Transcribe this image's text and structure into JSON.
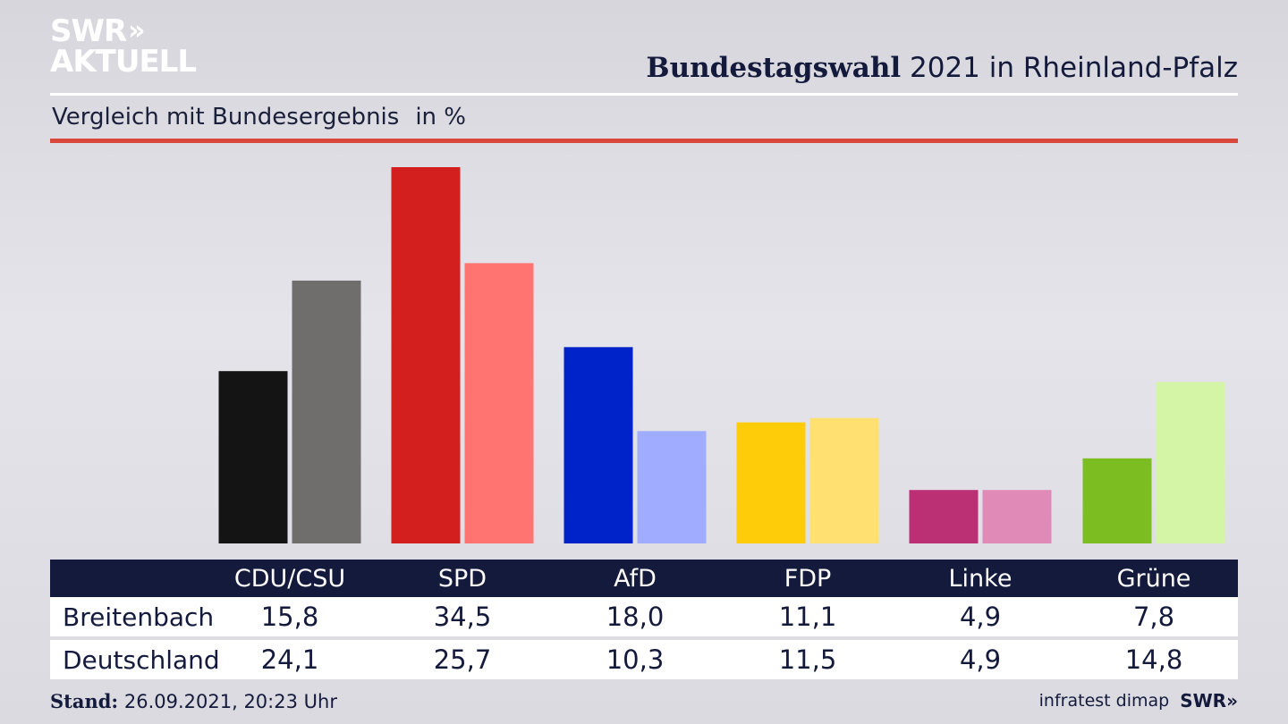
{
  "logo": {
    "line1": "SWR",
    "chevrons": "»",
    "line2": "AKTUELL"
  },
  "header": {
    "title_bold": "Bundestagswahl",
    "title_rest": " 2021 in Rheinland-Pfalz",
    "subtitle": "Vergleich mit Bundesergebnis",
    "unit": "in %"
  },
  "chart_data": {
    "type": "bar",
    "title": "Bundestagswahl 2021 in Rheinland-Pfalz",
    "subtitle": "Vergleich mit Bundesergebnis in %",
    "categories": [
      "CDU/CSU",
      "SPD",
      "AfD",
      "FDP",
      "Linke",
      "Grüne"
    ],
    "series": [
      {
        "name": "Breitenbach",
        "values": [
          15.8,
          34.5,
          18.0,
          11.1,
          4.9,
          7.8
        ],
        "colors": [
          "#141414",
          "#d41f1f",
          "#0022c9",
          "#ffcc0a",
          "#bb2f74",
          "#7cbd21"
        ]
      },
      {
        "name": "Deutschland",
        "values": [
          24.1,
          25.7,
          10.3,
          11.5,
          4.9,
          14.8
        ],
        "colors": [
          "#6f6e6c",
          "#ff7470",
          "#a0acff",
          "#ffe070",
          "#e08ab8",
          "#d4f5a6"
        ]
      }
    ],
    "display_values": {
      "Breitenbach": [
        "15,8",
        "34,5",
        "18,0",
        "11,1",
        "4,9",
        "7,8"
      ],
      "Deutschland": [
        "24,1",
        "25,7",
        "10,3",
        "11,5",
        "4,9",
        "14,8"
      ]
    },
    "ylim": [
      0,
      34.5
    ],
    "grid": false,
    "legend": "table-below"
  },
  "footer": {
    "stand_label": "Stand:",
    "stand_value": " 26.09.2021, 20:23 Uhr",
    "source": "infratest dimap",
    "brand": "SWR»"
  }
}
